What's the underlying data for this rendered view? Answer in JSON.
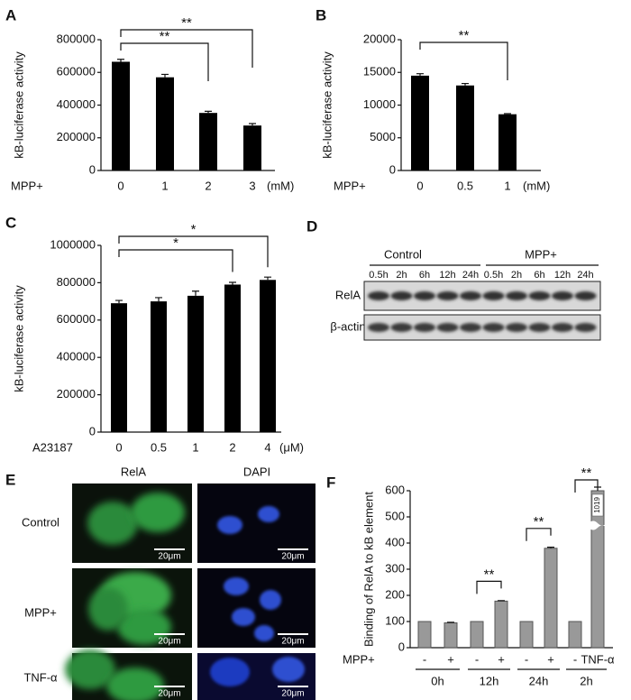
{
  "chart_data": [
    {
      "type": "bar",
      "panel": "A",
      "ylabel": "kB-luciferase activity",
      "xlabel": "MPP+",
      "x_unit": "(mM)",
      "categories": [
        "0",
        "1",
        "2",
        "3"
      ],
      "values": [
        665000,
        570000,
        352000,
        275000
      ],
      "errors": [
        15000,
        18000,
        10000,
        12000
      ],
      "color": "#000000",
      "ylim": [
        0,
        800000
      ],
      "yticks": [
        0,
        200000,
        400000,
        600000,
        800000
      ],
      "significance": [
        {
          "label": "**",
          "between": [
            0,
            3
          ]
        },
        {
          "label": "**",
          "between": [
            0,
            2
          ]
        }
      ]
    },
    {
      "type": "bar",
      "panel": "B",
      "ylabel": "kB-luciferase activity",
      "xlabel": "MPP+",
      "x_unit": "(mM)",
      "categories": [
        "0",
        "0.5",
        "1"
      ],
      "values": [
        14500,
        13000,
        8600
      ],
      "errors": [
        300,
        300,
        100
      ],
      "color": "#000000",
      "ylim": [
        0,
        20000
      ],
      "yticks": [
        0,
        5000,
        10000,
        15000,
        20000
      ],
      "significance": [
        {
          "label": "**",
          "between": [
            0,
            2
          ]
        }
      ]
    },
    {
      "type": "bar",
      "panel": "C",
      "ylabel": "kB-luciferase activity",
      "xlabel": "A23187",
      "x_unit": "(μM)",
      "categories": [
        "0",
        "0.5",
        "1",
        "2",
        "4"
      ],
      "values": [
        690000,
        700000,
        730000,
        790000,
        815000
      ],
      "errors": [
        15000,
        20000,
        25000,
        12000,
        15000
      ],
      "color": "#000000",
      "ylim": [
        0,
        1000000
      ],
      "yticks": [
        0,
        200000,
        400000,
        600000,
        800000,
        1000000
      ],
      "significance": [
        {
          "label": "*",
          "between": [
            0,
            4
          ]
        },
        {
          "label": "*",
          "between": [
            0,
            3
          ]
        }
      ]
    },
    {
      "type": "bar",
      "panel": "F",
      "ylabel": "Binding of RelA to kB element",
      "xlabel": "MPP+",
      "categories": [
        "-",
        "+",
        "-",
        "+",
        "-",
        "+",
        "-",
        "TNF-α"
      ],
      "groups": [
        "0h",
        "12h",
        "24h",
        "2h"
      ],
      "values": [
        100,
        95,
        100,
        178,
        100,
        380,
        100,
        1019
      ],
      "errors": [
        0,
        2,
        0,
        2,
        0,
        4,
        0,
        12
      ],
      "value_labels": [
        null,
        null,
        null,
        null,
        null,
        null,
        null,
        "1019"
      ],
      "axis_break": true,
      "color": "#999999",
      "ylim": [
        0,
        600
      ],
      "yticks": [
        0,
        100,
        200,
        300,
        400,
        500,
        600
      ],
      "significance": [
        {
          "label": "**",
          "between": [
            2,
            3
          ]
        },
        {
          "label": "**",
          "between": [
            4,
            5
          ]
        },
        {
          "label": "**",
          "between": [
            6,
            7
          ]
        }
      ]
    }
  ],
  "blot": {
    "panel": "D",
    "groups": [
      "Control",
      "MPP+"
    ],
    "times": [
      "0.5h",
      "2h",
      "6h",
      "12h",
      "24h",
      "0.5h",
      "2h",
      "6h",
      "12h",
      "24h"
    ],
    "rows": [
      "RelA",
      "β-actin"
    ]
  },
  "images": {
    "panel": "E",
    "columns": [
      "RelA",
      "DAPI"
    ],
    "rows": [
      "Control",
      "MPP+",
      "TNF-α"
    ],
    "scale_bar": "20μm"
  }
}
